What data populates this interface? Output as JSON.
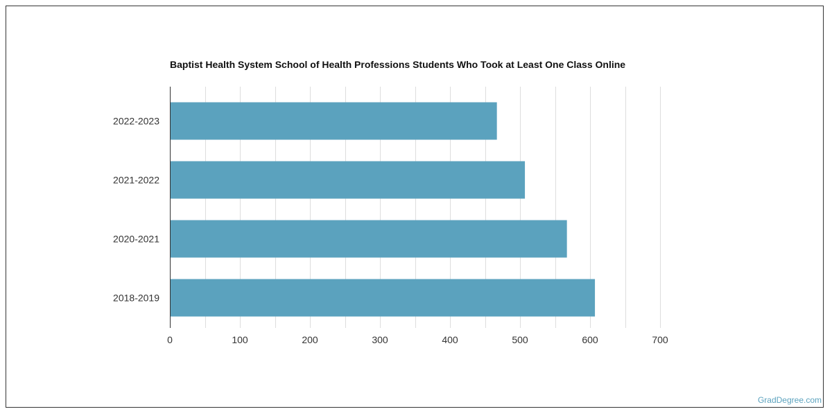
{
  "chart_data": {
    "type": "bar",
    "orientation": "horizontal",
    "title": "Baptist Health System School of Health Professions Students Who Took at Least One Class Online",
    "categories": [
      "2022-2023",
      "2021-2022",
      "2020-2021",
      "2018-2019"
    ],
    "values": [
      467,
      507,
      567,
      607
    ],
    "xlim": [
      0,
      700
    ],
    "xticks": [
      0,
      100,
      200,
      300,
      400,
      500,
      600,
      700
    ],
    "grid": true,
    "bar_color": "#5ba2be",
    "gridline_color": "#dddddd"
  },
  "watermark": "GradDegree.com"
}
